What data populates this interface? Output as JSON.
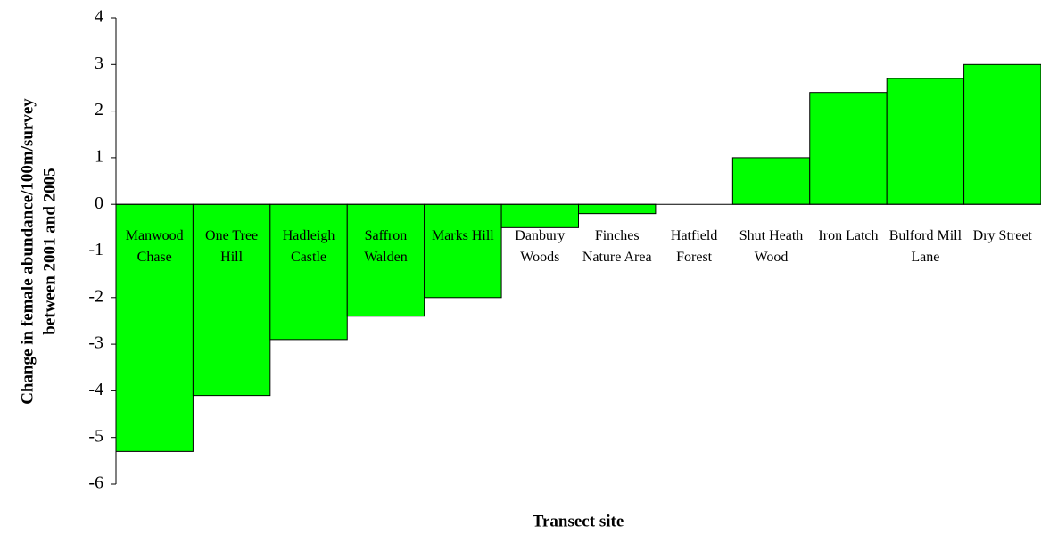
{
  "chart_data": {
    "type": "bar",
    "ylabel": [
      "Change in female abundance/100m/survey",
      "between 2001 and 2005"
    ],
    "xlabel": "Transect site",
    "categories": [
      "Manwood Chase",
      "One Tree Hill",
      "Hadleigh Castle",
      "Saffron Walden",
      "Marks Hill",
      "Danbury Woods",
      "Finches Nature Area",
      "Hatfield Forest",
      "Shut Heath Wood",
      "Iron Latch",
      "Bulford Mill Lane",
      "Dry Street"
    ],
    "values": [
      -5.3,
      -4.1,
      -2.9,
      -2.4,
      -2.0,
      -0.5,
      -0.2,
      0,
      1.0,
      2.4,
      2.7,
      3.0
    ],
    "color": "#00ff00",
    "ylim": [
      -6,
      4
    ],
    "yticks": [
      -6,
      -5,
      -4,
      -3,
      -2,
      -1,
      0,
      1,
      2,
      3,
      4
    ]
  }
}
